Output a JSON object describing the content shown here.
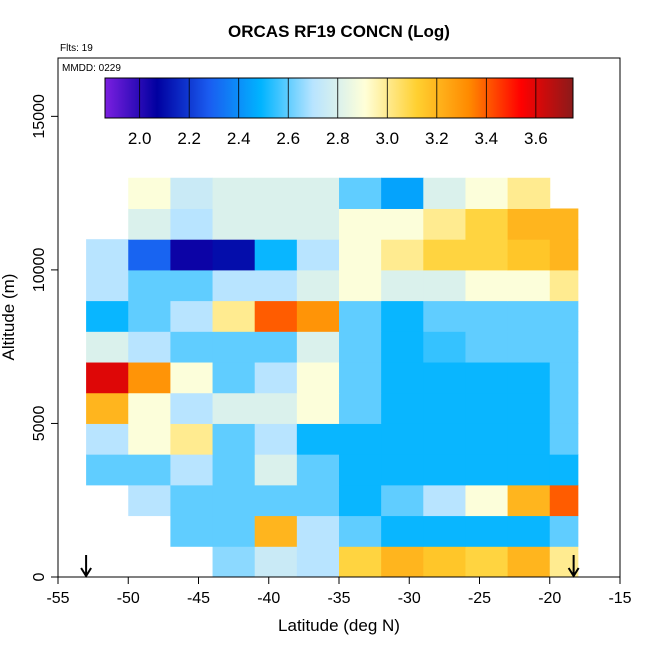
{
  "chart_data": {
    "type": "heatmap",
    "title": "ORCAS RF19 CONCN (Log)",
    "annotations": [
      "Flts: 19",
      "MMDD: 0229"
    ],
    "xlabel": "Latitude (deg N)",
    "ylabel": "Altitude (m)",
    "xlim": [
      -55,
      -15
    ],
    "ylim": [
      0,
      16900
    ],
    "xticks": [
      -55,
      -50,
      -45,
      -40,
      -35,
      -30,
      -25,
      -20,
      -15
    ],
    "yticks": [
      0,
      5000,
      10000,
      15000
    ],
    "x_edges": [
      -53,
      -50,
      -47,
      -44,
      -41,
      -38,
      -35,
      -32,
      -29,
      -26,
      -23,
      -20,
      -18
    ],
    "y_edges": [
      0,
      1000,
      2000,
      3000,
      4000,
      5000,
      6000,
      7000,
      8000,
      9000,
      10000,
      11000,
      12000,
      13000
    ],
    "z": [
      [
        null,
        null,
        null,
        2.65,
        2.75,
        2.7,
        3.1,
        3.2,
        3.15,
        3.1,
        3.2,
        3.0
      ],
      [
        null,
        null,
        2.6,
        2.6,
        3.2,
        2.7,
        2.6,
        2.5,
        2.5,
        2.5,
        2.5,
        2.6
      ],
      [
        null,
        2.7,
        2.6,
        2.6,
        2.6,
        2.6,
        2.5,
        2.6,
        2.7,
        2.9,
        3.2,
        3.4
      ],
      [
        2.6,
        2.6,
        2.7,
        2.6,
        2.8,
        2.6,
        2.5,
        2.5,
        2.5,
        2.5,
        2.5,
        2.5
      ],
      [
        2.7,
        2.9,
        3.0,
        2.6,
        2.7,
        2.5,
        2.5,
        2.5,
        2.5,
        2.5,
        2.5,
        2.6
      ],
      [
        3.2,
        2.9,
        2.7,
        2.8,
        2.8,
        2.9,
        2.6,
        2.5,
        2.5,
        2.5,
        2.5,
        2.6
      ],
      [
        3.6,
        3.3,
        2.9,
        2.6,
        2.7,
        2.9,
        2.6,
        2.5,
        2.5,
        2.5,
        2.5,
        2.6
      ],
      [
        2.8,
        2.7,
        2.6,
        2.6,
        2.6,
        2.8,
        2.6,
        2.5,
        2.55,
        2.6,
        2.6,
        2.6
      ],
      [
        2.5,
        2.6,
        2.7,
        3.0,
        3.4,
        3.3,
        2.6,
        2.5,
        2.6,
        2.6,
        2.6,
        2.6
      ],
      [
        2.7,
        2.6,
        2.6,
        2.7,
        2.7,
        2.8,
        2.9,
        2.8,
        2.8,
        2.9,
        2.9,
        3.0
      ],
      [
        2.7,
        2.3,
        2.05,
        2.1,
        2.5,
        2.7,
        2.9,
        3.0,
        3.1,
        3.1,
        3.15,
        3.2
      ],
      [
        null,
        2.8,
        2.7,
        2.8,
        2.8,
        2.8,
        2.9,
        2.9,
        3.0,
        3.1,
        3.2,
        3.2
      ],
      [
        null,
        2.9,
        2.75,
        2.8,
        2.8,
        2.8,
        2.6,
        2.45,
        2.8,
        2.9,
        3.0,
        null
      ]
    ],
    "clim": [
      1.86,
      3.75
    ],
    "colorscale": [
      "#7b1fe0",
      "#0000a0",
      "#1a5cf0",
      "#00b4ff",
      "#b8e4ff",
      "#ffffd8",
      "#ffd030",
      "#ff8a00",
      "#ff0000",
      "#8b1a1a"
    ],
    "cticks": [
      {
        "value": 2,
        "label": "2.0"
      },
      {
        "value": 2.2,
        "label": "2.2"
      },
      {
        "value": 2.4,
        "label": "2.4"
      },
      {
        "value": 2.6,
        "label": "2.6"
      },
      {
        "value": 2.8,
        "label": "2.8"
      },
      {
        "value": 3,
        "label": "3.0"
      },
      {
        "value": 3.2,
        "label": "3.2"
      },
      {
        "value": 3.4,
        "label": "3.4"
      },
      {
        "value": 3.6,
        "label": "3.6"
      }
    ],
    "arrows_x": [
      -53,
      -18.3
    ]
  }
}
